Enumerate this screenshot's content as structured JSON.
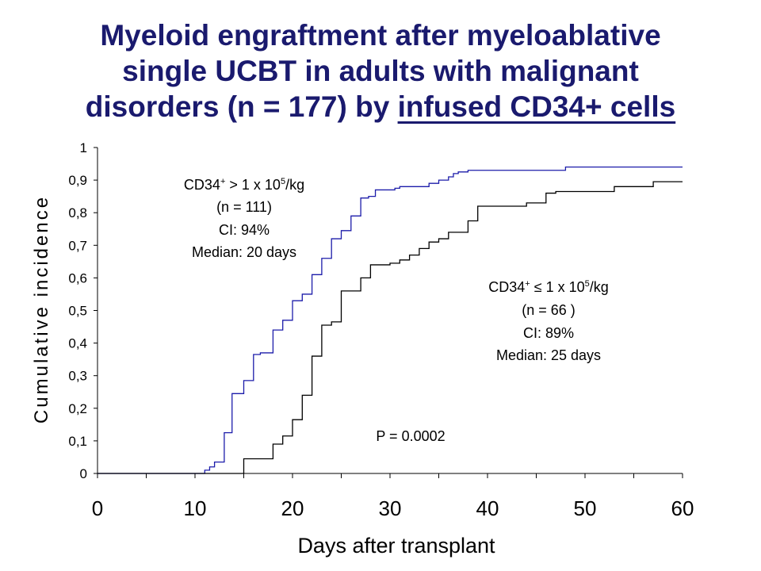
{
  "title": {
    "line1": "Myeloid engraftment after myeloablative",
    "line2": "single UCBT in adults with malignant",
    "line3_pre": "disorders (n = 177) by ",
    "line3_underlined": "infused CD34+ cells"
  },
  "chart_data": {
    "type": "line",
    "xlabel": "Days after transplant",
    "ylabel": "Cumulative incidence",
    "xlim": [
      0,
      60
    ],
    "ylim": [
      0,
      1
    ],
    "xticks": [
      0,
      10,
      20,
      30,
      40,
      50,
      60
    ],
    "xtick_labels": [
      "0",
      "10",
      "20",
      "30",
      "40",
      "50",
      "60"
    ],
    "yticks": [
      0,
      0.1,
      0.2,
      0.3,
      0.4,
      0.5,
      0.6,
      0.7,
      0.8,
      0.9,
      1
    ],
    "ytick_labels": [
      "0",
      "0,1",
      "0,2",
      "0,3",
      "0,4",
      "0,5",
      "0,6",
      "0,7",
      "0,8",
      "0,9",
      "1"
    ],
    "grid": false,
    "step": true,
    "series": [
      {
        "color": "#1c1caa",
        "x": [
          0,
          11,
          11.5,
          12,
          13,
          13.8,
          15,
          16,
          16.7,
          18,
          19,
          20,
          21,
          22,
          23,
          24,
          25,
          26,
          27,
          27.8,
          28.5,
          30.5,
          31,
          34,
          35,
          36,
          36.5,
          37,
          38,
          40,
          48,
          60
        ],
        "y": [
          0,
          0.01,
          0.02,
          0.035,
          0.125,
          0.245,
          0.285,
          0.365,
          0.37,
          0.44,
          0.47,
          0.53,
          0.55,
          0.61,
          0.66,
          0.72,
          0.745,
          0.79,
          0.845,
          0.85,
          0.87,
          0.875,
          0.88,
          0.89,
          0.9,
          0.91,
          0.92,
          0.925,
          0.93,
          0.93,
          0.94,
          0.94
        ]
      },
      {
        "color": "#000000",
        "x": [
          0,
          15,
          18,
          19,
          20,
          21,
          22,
          23,
          24,
          25,
          27,
          28,
          30,
          31,
          32,
          33,
          34,
          35,
          36,
          38,
          39,
          44,
          46,
          47,
          53,
          57,
          60
        ],
        "y": [
          0,
          0.045,
          0.09,
          0.115,
          0.165,
          0.24,
          0.36,
          0.455,
          0.465,
          0.56,
          0.6,
          0.64,
          0.645,
          0.655,
          0.67,
          0.69,
          0.71,
          0.72,
          0.74,
          0.775,
          0.82,
          0.83,
          0.86,
          0.865,
          0.88,
          0.895,
          0.895
        ]
      }
    ],
    "annotations": {
      "high": {
        "l1_a": "CD34",
        "l1_sup": "+",
        "l1_b": " > 1 x 10",
        "l1_exp": "5",
        "l1_c": "/kg",
        "l2": "(n = 111)",
        "l3": "CI: 94%",
        "l4": "Median:  20 days"
      },
      "low": {
        "l1_a": "CD34",
        "l1_sup": "+",
        "l1_b": " ≤ 1 x 10",
        "l1_exp": "5",
        "l1_c": "/kg",
        "l2": "(n = 66 )",
        "l3": "CI: 89%",
        "l4": "Median: 25 days"
      },
      "pvalue": "P = 0.0002"
    }
  }
}
